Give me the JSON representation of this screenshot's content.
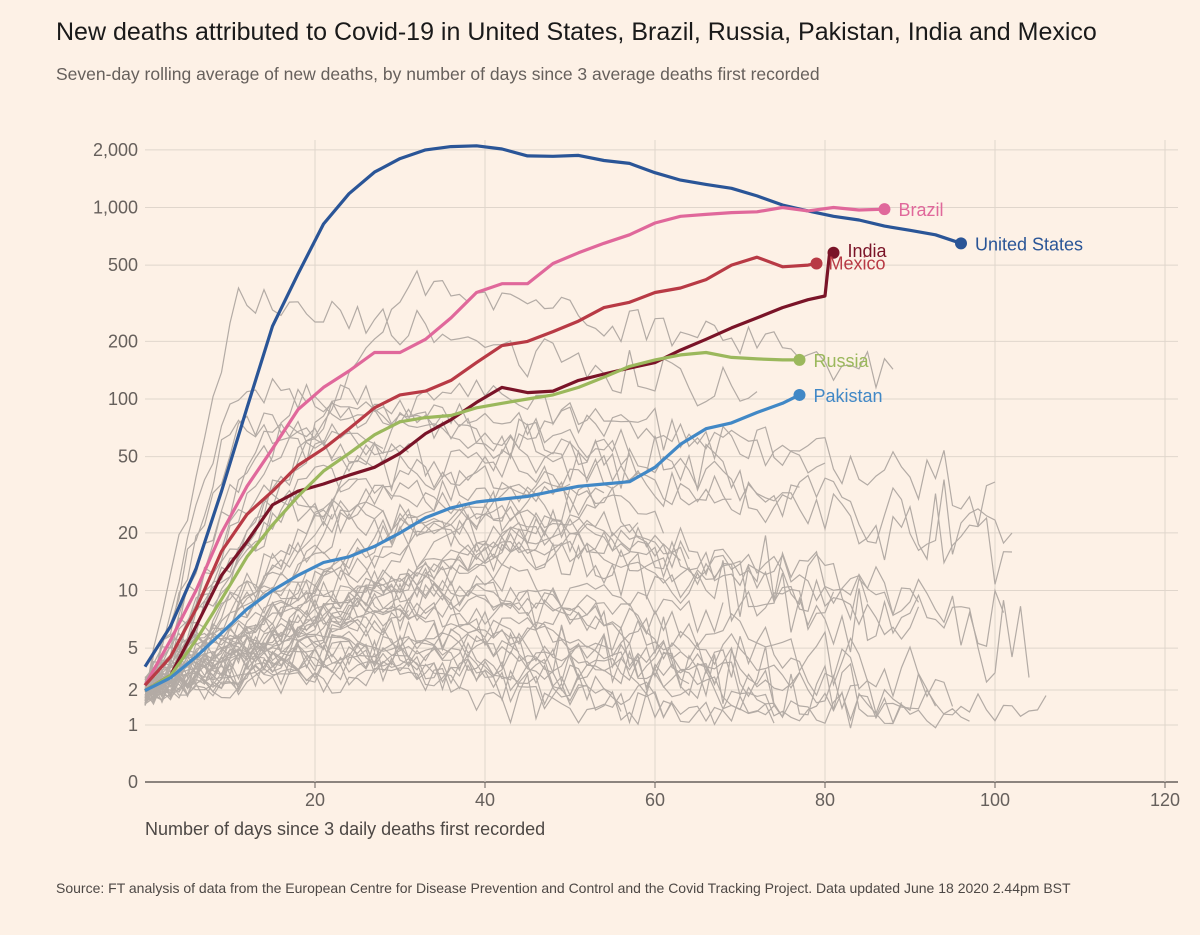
{
  "title": "New deaths attributed to Covid-19 in United States, Brazil, Russia, Pakistan, India and Mexico",
  "subtitle": "Seven-day rolling average of new deaths, by number of days since 3 average deaths first recorded",
  "source": "Source: FT analysis of data from the European Centre for Disease Prevention and Control and the Covid Tracking Project. Data updated June 18 2020 2.44pm BST",
  "chart_data": {
    "type": "line",
    "xlabel": "Number of days since 3 daily deaths first recorded",
    "ylabel": "",
    "y_scale": "log (symlog near zero)",
    "xlim": [
      0,
      122
    ],
    "ylim": [
      0,
      2500
    ],
    "grid": true,
    "x_ticks": [
      20,
      40,
      60,
      80,
      100,
      120
    ],
    "x_tick_labels": [
      "20",
      "40",
      "60",
      "80",
      "100",
      "120"
    ],
    "y_ticks": [
      0,
      1,
      2,
      5,
      10,
      20,
      50,
      100,
      200,
      500,
      1000,
      2000
    ],
    "y_tick_labels": [
      "0",
      "1",
      "2",
      "5",
      "10",
      "20",
      "50",
      "100",
      "200",
      "500",
      "1,000",
      "2,000"
    ],
    "series": [
      {
        "name": "United States",
        "color": "#2a5597",
        "points": [
          [
            0,
            4
          ],
          [
            3,
            6.5
          ],
          [
            6,
            13
          ],
          [
            9,
            33
          ],
          [
            12,
            90
          ],
          [
            15,
            240
          ],
          [
            18,
            450
          ],
          [
            21,
            820
          ],
          [
            24,
            1180
          ],
          [
            27,
            1530
          ],
          [
            30,
            1800
          ],
          [
            33,
            2000
          ],
          [
            36,
            2080
          ],
          [
            39,
            2100
          ],
          [
            42,
            2020
          ],
          [
            45,
            1860
          ],
          [
            48,
            1850
          ],
          [
            51,
            1870
          ],
          [
            54,
            1760
          ],
          [
            57,
            1700
          ],
          [
            60,
            1520
          ],
          [
            63,
            1390
          ],
          [
            66,
            1320
          ],
          [
            69,
            1260
          ],
          [
            72,
            1150
          ],
          [
            75,
            1030
          ],
          [
            78,
            960
          ],
          [
            81,
            900
          ],
          [
            84,
            860
          ],
          [
            87,
            800
          ],
          [
            90,
            760
          ],
          [
            93,
            720
          ],
          [
            96,
            650
          ]
        ]
      },
      {
        "name": "Brazil",
        "color": "#e0689b",
        "points": [
          [
            0,
            3.2
          ],
          [
            3,
            5.5
          ],
          [
            6,
            10
          ],
          [
            9,
            20
          ],
          [
            12,
            35
          ],
          [
            15,
            55
          ],
          [
            18,
            88
          ],
          [
            21,
            115
          ],
          [
            24,
            140
          ],
          [
            27,
            175
          ],
          [
            30,
            175
          ],
          [
            33,
            205
          ],
          [
            36,
            265
          ],
          [
            39,
            360
          ],
          [
            42,
            400
          ],
          [
            45,
            400
          ],
          [
            48,
            510
          ],
          [
            51,
            580
          ],
          [
            54,
            650
          ],
          [
            57,
            720
          ],
          [
            60,
            830
          ],
          [
            63,
            900
          ],
          [
            66,
            920
          ],
          [
            69,
            940
          ],
          [
            72,
            950
          ],
          [
            75,
            1000
          ],
          [
            78,
            960
          ],
          [
            81,
            1000
          ],
          [
            84,
            970
          ],
          [
            87,
            980
          ]
        ]
      },
      {
        "name": "India",
        "color": "#7a1428",
        "points": [
          [
            0,
            3
          ],
          [
            3,
            3.6
          ],
          [
            6,
            6.5
          ],
          [
            9,
            12
          ],
          [
            12,
            18
          ],
          [
            15,
            28
          ],
          [
            18,
            33
          ],
          [
            21,
            36
          ],
          [
            24,
            40
          ],
          [
            27,
            44
          ],
          [
            30,
            52
          ],
          [
            33,
            66
          ],
          [
            36,
            78
          ],
          [
            39,
            96
          ],
          [
            42,
            115
          ],
          [
            45,
            108
          ],
          [
            48,
            110
          ],
          [
            51,
            125
          ],
          [
            54,
            135
          ],
          [
            57,
            145
          ],
          [
            60,
            155
          ],
          [
            63,
            180
          ],
          [
            66,
            205
          ],
          [
            69,
            235
          ],
          [
            72,
            265
          ],
          [
            75,
            300
          ],
          [
            78,
            330
          ],
          [
            80,
            345
          ],
          [
            80.5,
            560
          ],
          [
            81,
            580
          ]
        ]
      },
      {
        "name": "Mexico",
        "color": "#b83a45",
        "points": [
          [
            0,
            3.2
          ],
          [
            3,
            4.5
          ],
          [
            6,
            8
          ],
          [
            9,
            16
          ],
          [
            12,
            25
          ],
          [
            15,
            33
          ],
          [
            18,
            45
          ],
          [
            21,
            55
          ],
          [
            24,
            70
          ],
          [
            27,
            90
          ],
          [
            30,
            105
          ],
          [
            33,
            110
          ],
          [
            36,
            125
          ],
          [
            39,
            155
          ],
          [
            42,
            190
          ],
          [
            45,
            200
          ],
          [
            48,
            225
          ],
          [
            51,
            255
          ],
          [
            54,
            300
          ],
          [
            57,
            320
          ],
          [
            60,
            360
          ],
          [
            63,
            380
          ],
          [
            66,
            420
          ],
          [
            69,
            500
          ],
          [
            72,
            550
          ],
          [
            75,
            490
          ],
          [
            78,
            500
          ],
          [
            79,
            510
          ]
        ]
      },
      {
        "name": "Russia",
        "color": "#9bb85c",
        "points": [
          [
            0,
            3
          ],
          [
            3,
            3.6
          ],
          [
            6,
            5.5
          ],
          [
            9,
            9
          ],
          [
            12,
            15
          ],
          [
            15,
            22
          ],
          [
            18,
            31
          ],
          [
            21,
            42
          ],
          [
            24,
            52
          ],
          [
            27,
            65
          ],
          [
            30,
            76
          ],
          [
            33,
            80
          ],
          [
            36,
            82
          ],
          [
            39,
            90
          ],
          [
            42,
            95
          ],
          [
            45,
            100
          ],
          [
            48,
            105
          ],
          [
            51,
            115
          ],
          [
            54,
            130
          ],
          [
            57,
            148
          ],
          [
            60,
            160
          ],
          [
            63,
            170
          ],
          [
            66,
            175
          ],
          [
            69,
            165
          ],
          [
            72,
            162
          ],
          [
            75,
            160
          ],
          [
            77,
            160
          ]
        ]
      },
      {
        "name": "Pakistan",
        "color": "#4188c6",
        "points": [
          [
            0,
            3
          ],
          [
            3,
            3.5
          ],
          [
            6,
            4.5
          ],
          [
            9,
            6
          ],
          [
            12,
            8
          ],
          [
            15,
            10
          ],
          [
            18,
            12
          ],
          [
            21,
            14
          ],
          [
            24,
            15
          ],
          [
            27,
            17
          ],
          [
            30,
            20
          ],
          [
            33,
            24
          ],
          [
            36,
            27
          ],
          [
            39,
            29
          ],
          [
            42,
            30
          ],
          [
            45,
            31
          ],
          [
            48,
            33
          ],
          [
            51,
            35
          ],
          [
            54,
            36
          ],
          [
            57,
            37
          ],
          [
            60,
            44
          ],
          [
            63,
            58
          ],
          [
            66,
            70
          ],
          [
            69,
            75
          ],
          [
            72,
            85
          ],
          [
            75,
            95
          ],
          [
            77,
            105
          ]
        ]
      }
    ],
    "background_series_count": 55
  }
}
